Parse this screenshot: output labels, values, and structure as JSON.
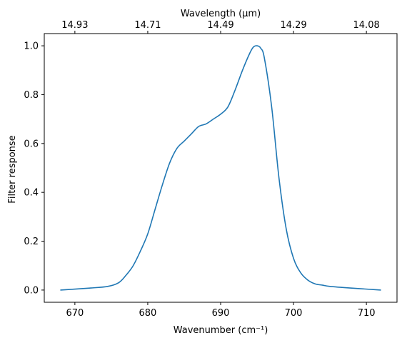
{
  "chart_data": {
    "type": "line",
    "title": "",
    "xlabel": "Wavenumber (cm⁻¹)",
    "ylabel": "Filter response",
    "top_xlabel": "Wavelength (μm)",
    "xlim": [
      665.8,
      714.2
    ],
    "ylim": [
      -0.05,
      1.05
    ],
    "x_ticks": [
      670,
      680,
      690,
      700,
      710
    ],
    "y_ticks": [
      0.0,
      0.2,
      0.4,
      0.6,
      0.8,
      1.0
    ],
    "y_tick_labels": [
      "0.0",
      "0.2",
      "0.4",
      "0.6",
      "0.8",
      "1.0"
    ],
    "top_ticks": [
      {
        "wavenumber": 670,
        "label": "14.93"
      },
      {
        "wavenumber": 680,
        "label": "14.71"
      },
      {
        "wavenumber": 690,
        "label": "14.49"
      },
      {
        "wavenumber": 700,
        "label": "14.29"
      },
      {
        "wavenumber": 710,
        "label": "14.08"
      }
    ],
    "grid": false,
    "line_color": "#1f77b4",
    "series": [
      {
        "x": [
          668,
          672,
          674.5,
          676,
          677,
          678,
          679,
          680,
          681,
          682,
          683,
          684,
          685,
          686,
          687,
          688,
          689,
          690,
          691,
          692,
          693,
          694,
          694.5,
          695,
          695.5,
          696,
          697,
          698,
          699,
          700,
          701,
          702,
          703,
          704,
          705,
          708,
          712
        ],
        "y": [
          0.0,
          0.008,
          0.015,
          0.03,
          0.06,
          0.1,
          0.16,
          0.23,
          0.33,
          0.43,
          0.52,
          0.58,
          0.61,
          0.64,
          0.67,
          0.68,
          0.7,
          0.72,
          0.75,
          0.82,
          0.9,
          0.97,
          0.995,
          1.0,
          0.99,
          0.95,
          0.75,
          0.46,
          0.25,
          0.13,
          0.07,
          0.04,
          0.025,
          0.02,
          0.015,
          0.008,
          0.0
        ]
      }
    ]
  }
}
